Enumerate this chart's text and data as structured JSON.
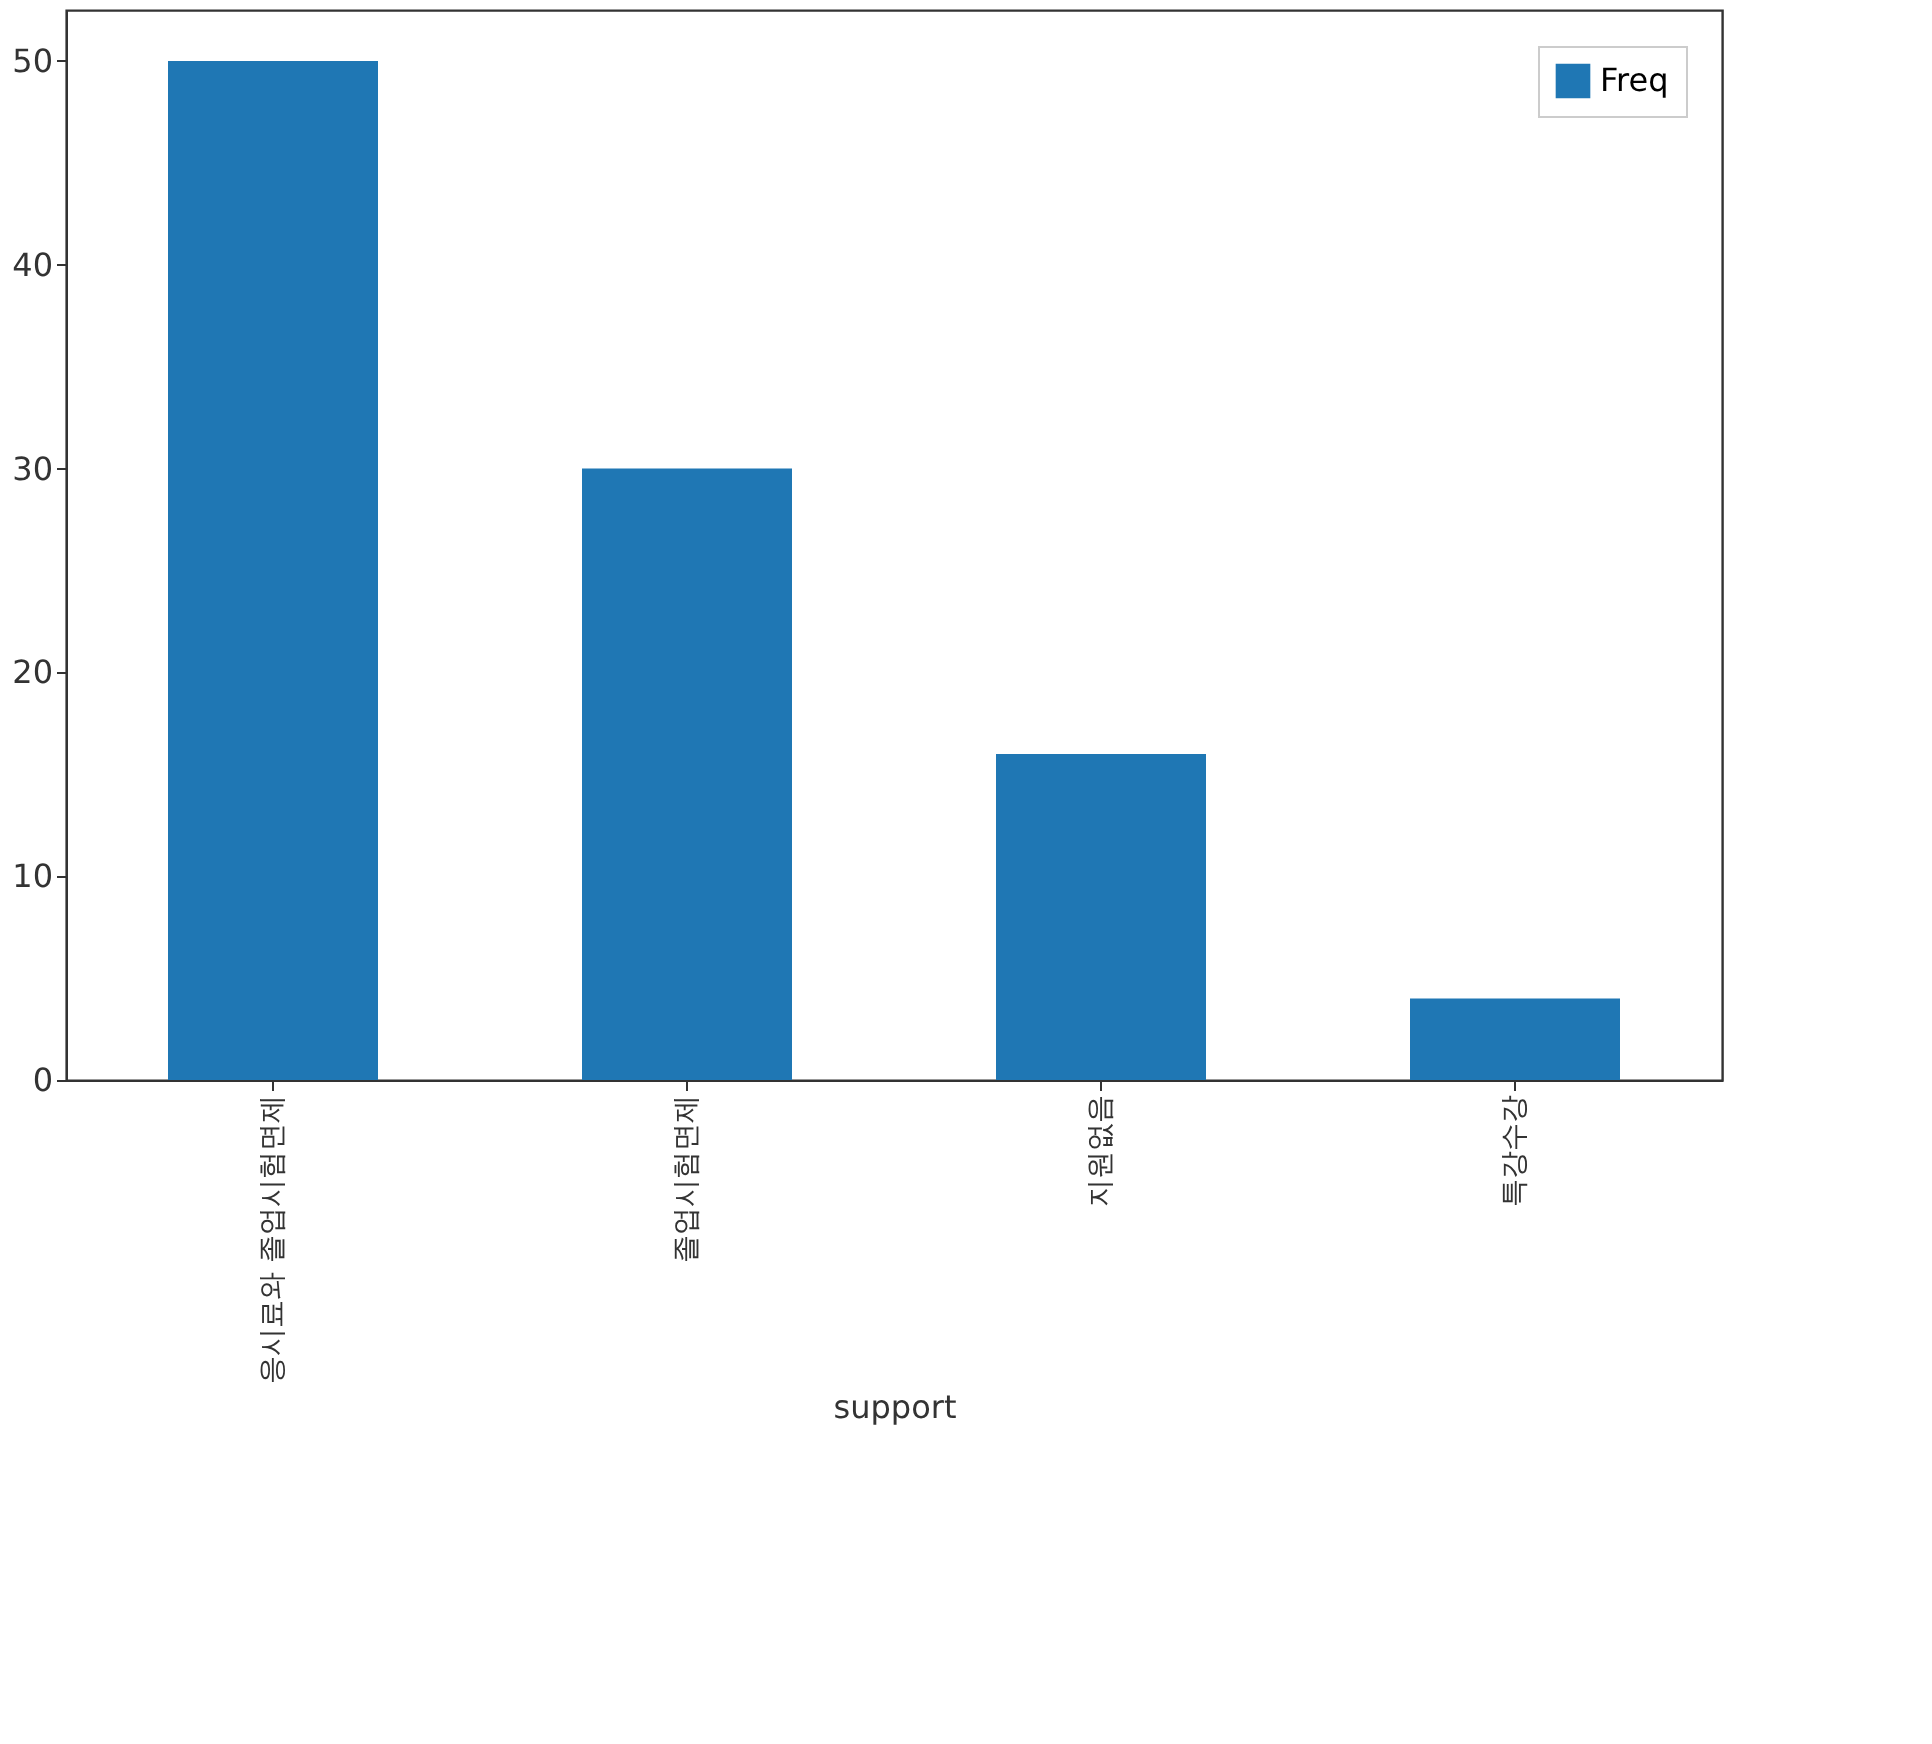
{
  "chart_data": {
    "type": "bar",
    "xlabel": "support",
    "categories": [
      "응시료와 졸업시험면제",
      "졸업시험면제",
      "지원없음",
      "특강수강"
    ],
    "series": [
      {
        "name": "Freq",
        "color": "#1f77b4",
        "values": [
          50,
          30,
          16,
          4
        ]
      }
    ],
    "ylim": [
      0,
      52.5
    ],
    "yticks": [
      0,
      10,
      20,
      30,
      40,
      50
    ],
    "grid": false,
    "legend": "top right"
  }
}
